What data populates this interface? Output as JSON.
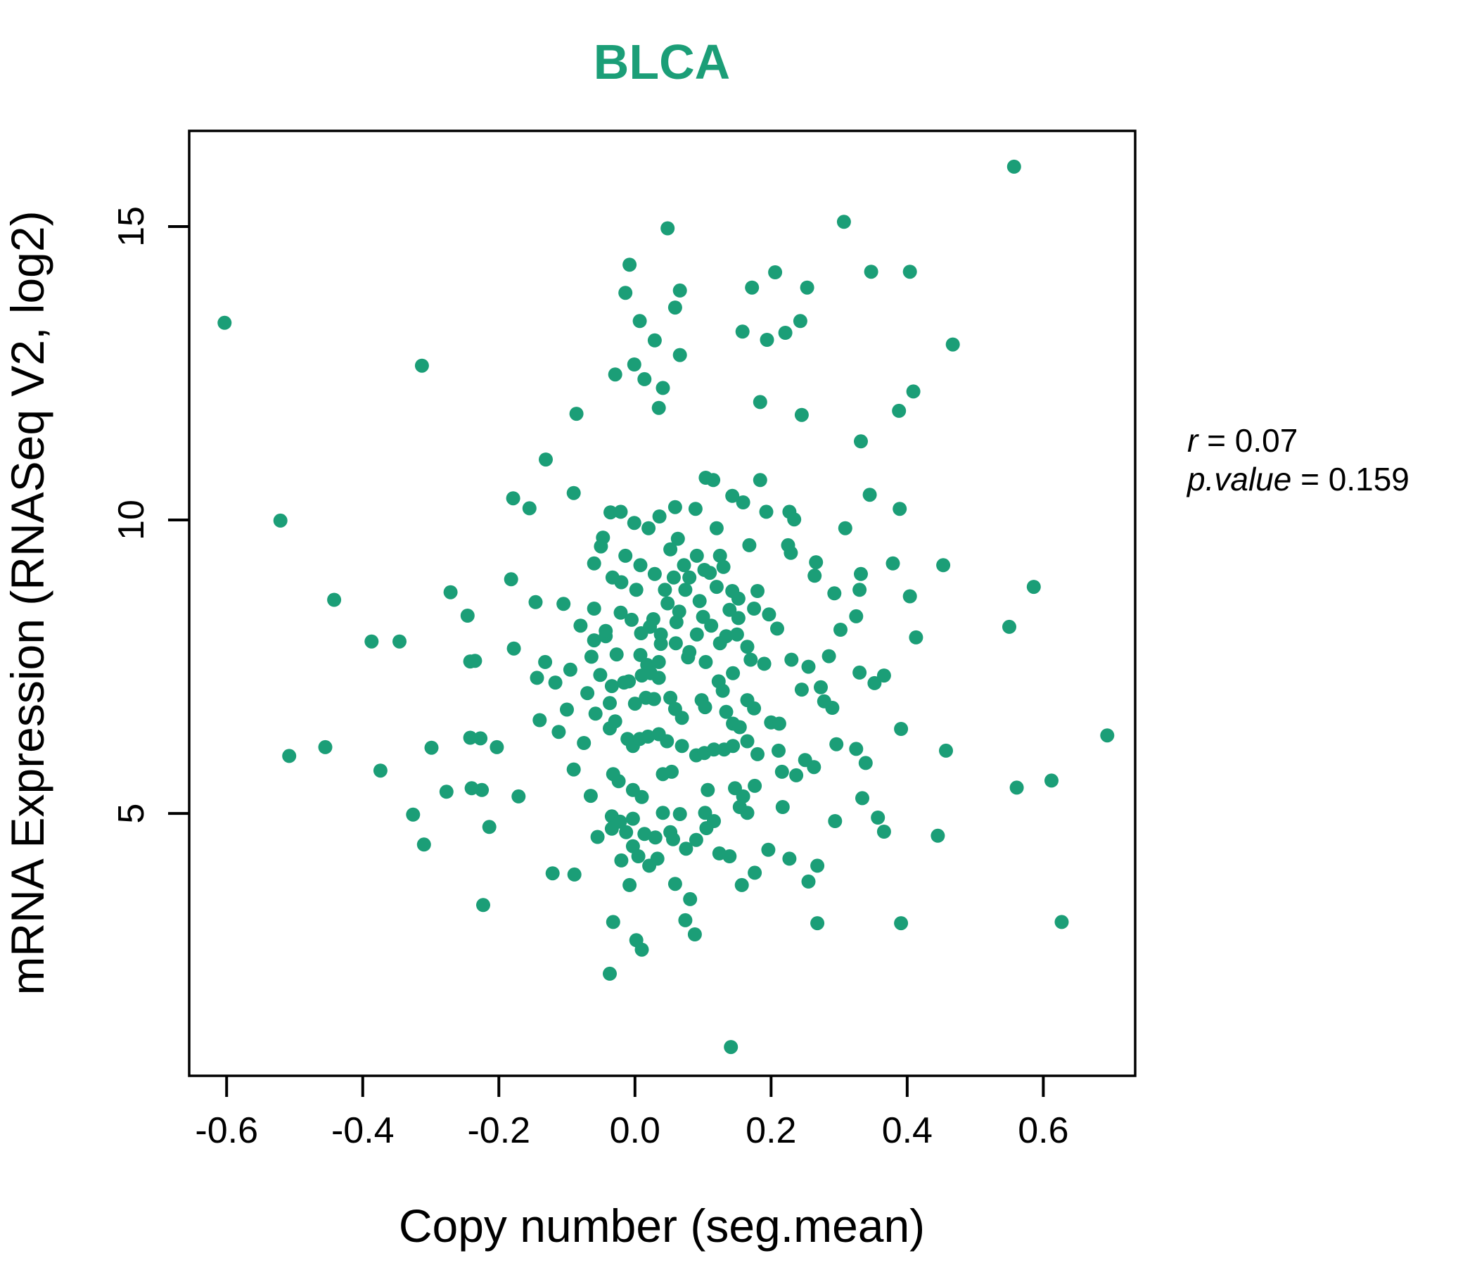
{
  "chart_data": {
    "type": "scatter",
    "title": "BLCA",
    "xlabel": "Copy number (seg.mean)",
    "ylabel": "mRNA Expression (RNASeq V2, log2)",
    "xlim": [
      -0.655,
      0.735
    ],
    "ylim": [
      0.53,
      16.63
    ],
    "grid": false,
    "legend": "none",
    "x_ticks": {
      "values": [
        -0.6,
        -0.4,
        -0.2,
        0.0,
        0.2,
        0.4,
        0.6
      ],
      "labels": [
        "-0.6",
        "-0.4",
        "-0.2",
        "0.0",
        "0.2",
        "0.4",
        "0.6"
      ]
    },
    "y_ticks": {
      "values": [
        5,
        10,
        15
      ],
      "labels": [
        "5",
        "10",
        "15"
      ]
    },
    "annotation": {
      "line1_var": "r",
      "line1_rest": " = 0.07",
      "line2_var": "p.value",
      "line2_rest": " = 0.159"
    },
    "colors": {
      "point": "#1B9E77",
      "title": "#1B9E77",
      "axis": "#000000",
      "background": "#FFFFFF"
    },
    "points": [
      [
        -0.603,
        13.36
      ],
      [
        -0.313,
        12.63
      ],
      [
        -0.521,
        9.99
      ],
      [
        -0.442,
        8.64
      ],
      [
        -0.271,
        8.77
      ],
      [
        -0.182,
        8.99
      ],
      [
        -0.146,
        8.6
      ],
      [
        -0.105,
        8.57
      ],
      [
        -0.131,
        11.03
      ],
      [
        -0.179,
        10.37
      ],
      [
        -0.155,
        10.2
      ],
      [
        -0.09,
        10.46
      ],
      [
        -0.086,
        11.81
      ],
      [
        -0.036,
        10.13
      ],
      [
        -0.047,
        9.7
      ],
      [
        -0.06,
        9.26
      ],
      [
        -0.029,
        12.48
      ],
      [
        -0.014,
        13.87
      ],
      [
        -0.008,
        14.35
      ],
      [
        0.048,
        14.97
      ],
      [
        0.007,
        13.39
      ],
      [
        0.029,
        13.06
      ],
      [
        -0.001,
        12.65
      ],
      [
        0.014,
        12.4
      ],
      [
        0.041,
        12.25
      ],
      [
        0.035,
        11.91
      ],
      [
        -0.021,
        10.14
      ],
      [
        -0.001,
        9.95
      ],
      [
        0.02,
        9.86
      ],
      [
        0.036,
        10.06
      ],
      [
        -0.014,
        9.39
      ],
      [
        0.008,
        9.23
      ],
      [
        0.029,
        9.08
      ],
      [
        -0.02,
        8.94
      ],
      [
        0.002,
        8.81
      ],
      [
        0.044,
        8.81
      ],
      [
        0.557,
        16.02
      ],
      [
        0.307,
        15.08
      ],
      [
        0.347,
        14.23
      ],
      [
        0.404,
        14.23
      ],
      [
        0.206,
        14.22
      ],
      [
        0.172,
        13.96
      ],
      [
        0.253,
        13.96
      ],
      [
        0.066,
        13.91
      ],
      [
        0.059,
        13.62
      ],
      [
        0.243,
        13.39
      ],
      [
        0.158,
        13.21
      ],
      [
        0.194,
        13.07
      ],
      [
        0.221,
        13.19
      ],
      [
        0.066,
        12.81
      ],
      [
        0.467,
        12.99
      ],
      [
        0.409,
        12.19
      ],
      [
        0.184,
        12.01
      ],
      [
        0.388,
        11.86
      ],
      [
        0.245,
        11.79
      ],
      [
        0.332,
        11.34
      ],
      [
        0.184,
        10.68
      ],
      [
        0.104,
        10.72
      ],
      [
        0.115,
        10.68
      ],
      [
        0.143,
        10.41
      ],
      [
        0.159,
        10.3
      ],
      [
        0.059,
        10.22
      ],
      [
        0.089,
        10.19
      ],
      [
        0.193,
        10.14
      ],
      [
        0.227,
        10.14
      ],
      [
        0.234,
        10.01
      ],
      [
        0.345,
        10.43
      ],
      [
        0.389,
        10.19
      ],
      [
        0.309,
        9.86
      ],
      [
        0.12,
        9.86
      ],
      [
        0.091,
        9.39
      ],
      [
        0.125,
        9.39
      ],
      [
        0.168,
        9.57
      ],
      [
        0.225,
        9.57
      ],
      [
        0.229,
        9.44
      ],
      [
        0.266,
        9.28
      ],
      [
        0.264,
        9.05
      ],
      [
        0.332,
        9.08
      ],
      [
        0.379,
        9.26
      ],
      [
        0.453,
        9.23
      ],
      [
        0.586,
        8.86
      ],
      [
        0.293,
        8.75
      ],
      [
        0.33,
        8.81
      ],
      [
        0.404,
        8.7
      ],
      [
        0.072,
        9.23
      ],
      [
        0.102,
        9.15
      ],
      [
        0.12,
        8.86
      ],
      [
        0.143,
        8.79
      ],
      [
        0.152,
        8.66
      ],
      [
        0.18,
        8.79
      ],
      [
        0.074,
        8.81
      ],
      [
        0.057,
        9.02
      ],
      [
        -0.246,
        8.37
      ],
      [
        -0.387,
        7.93
      ],
      [
        -0.346,
        7.93
      ],
      [
        -0.235,
        7.6
      ],
      [
        -0.178,
        7.81
      ],
      [
        -0.132,
        7.58
      ],
      [
        -0.144,
        7.31
      ],
      [
        -0.117,
        7.23
      ],
      [
        -0.064,
        7.67
      ],
      [
        -0.043,
        8.02
      ],
      [
        -0.051,
        7.36
      ],
      [
        -0.009,
        7.25
      ],
      [
        -0.037,
        6.88
      ],
      [
        -0.1,
        6.77
      ],
      [
        -0.14,
        6.59
      ],
      [
        -0.112,
        6.39
      ],
      [
        -0.508,
        5.98
      ],
      [
        -0.455,
        6.13
      ],
      [
        -0.374,
        5.73
      ],
      [
        -0.299,
        6.12
      ],
      [
        -0.277,
        5.37
      ],
      [
        -0.227,
        6.28
      ],
      [
        -0.203,
        6.13
      ],
      [
        -0.225,
        5.4
      ],
      [
        -0.171,
        5.29
      ],
      [
        -0.326,
        4.98
      ],
      [
        -0.214,
        4.77
      ],
      [
        -0.31,
        4.47
      ],
      [
        -0.121,
        3.98
      ],
      [
        -0.089,
        3.96
      ],
      [
        -0.223,
        3.44
      ],
      [
        -0.032,
        3.15
      ],
      [
        0.002,
        2.84
      ],
      [
        0.01,
        2.68
      ],
      [
        -0.037,
        2.27
      ],
      [
        -0.242,
        7.59
      ],
      [
        -0.242,
        6.29
      ],
      [
        -0.24,
        5.43
      ],
      [
        -0.06,
        8.49
      ],
      [
        -0.021,
        8.42
      ],
      [
        0.027,
        8.31
      ],
      [
        -0.043,
        8.11
      ],
      [
        0.009,
        8.07
      ],
      [
        0.038,
        7.89
      ],
      [
        -0.027,
        7.71
      ],
      [
        0.018,
        7.53
      ],
      [
        0.55,
        8.18
      ],
      [
        0.413,
        8.0
      ],
      [
        0.694,
        6.33
      ],
      [
        0.457,
        6.07
      ],
      [
        0.561,
        5.44
      ],
      [
        0.612,
        5.56
      ],
      [
        0.627,
        3.15
      ],
      [
        0.391,
        3.13
      ],
      [
        0.268,
        3.13
      ],
      [
        0.445,
        4.62
      ],
      [
        0.141,
        1.02
      ],
      [
        0.33,
        7.4
      ],
      [
        0.366,
        7.35
      ],
      [
        0.352,
        7.22
      ],
      [
        0.29,
        6.8
      ],
      [
        0.391,
        6.44
      ],
      [
        0.296,
        6.18
      ],
      [
        0.325,
        6.1
      ],
      [
        0.339,
        5.86
      ],
      [
        0.357,
        4.93
      ],
      [
        0.294,
        4.87
      ],
      [
        0.334,
        5.26
      ],
      [
        0.366,
        4.69
      ],
      [
        0.081,
        3.54
      ],
      [
        0.074,
        3.18
      ],
      [
        0.088,
        2.94
      ],
      [
        0.061,
        8.26
      ],
      [
        0.091,
        8.05
      ],
      [
        0.112,
        8.2
      ],
      [
        0.139,
        8.47
      ],
      [
        0.152,
        8.33
      ],
      [
        0.175,
        8.49
      ],
      [
        0.197,
        8.39
      ],
      [
        0.209,
        8.15
      ],
      [
        0.325,
        8.36
      ],
      [
        0.302,
        8.13
      ],
      [
        0.078,
        7.66
      ],
      [
        0.104,
        7.58
      ],
      [
        0.134,
        8.02
      ],
      [
        0.165,
        7.84
      ],
      [
        -0.034,
        7.17
      ],
      [
        -0.016,
        7.23
      ],
      [
        0.01,
        7.35
      ],
      [
        0.023,
        7.39
      ],
      [
        0.035,
        7.31
      ],
      [
        0.123,
        7.25
      ],
      [
        0.129,
        7.09
      ],
      [
        0.144,
        7.39
      ],
      [
        0.165,
        6.93
      ],
      [
        0.175,
        6.79
      ],
      [
        0.245,
        7.11
      ],
      [
        0.273,
        7.15
      ],
      [
        0.278,
        6.91
      ],
      [
        -0.037,
        6.45
      ],
      [
        -0.029,
        6.57
      ],
      [
        0.0,
        6.87
      ],
      [
        0.016,
        6.97
      ],
      [
        0.028,
        6.95
      ],
      [
        0.052,
        6.97
      ],
      [
        0.059,
        6.78
      ],
      [
        0.069,
        6.63
      ],
      [
        0.098,
        6.93
      ],
      [
        0.103,
        6.81
      ],
      [
        0.134,
        6.73
      ],
      [
        0.144,
        6.53
      ],
      [
        0.154,
        6.47
      ],
      [
        0.2,
        6.55
      ],
      [
        0.212,
        6.53
      ],
      [
        -0.011,
        6.27
      ],
      [
        -0.003,
        6.15
      ],
      [
        0.007,
        6.27
      ],
      [
        0.019,
        6.31
      ],
      [
        0.035,
        6.35
      ],
      [
        0.047,
        6.23
      ],
      [
        0.069,
        6.15
      ],
      [
        0.09,
        5.99
      ],
      [
        0.102,
        6.03
      ],
      [
        0.116,
        6.09
      ],
      [
        0.131,
        6.09
      ],
      [
        0.144,
        6.15
      ],
      [
        0.165,
        6.23
      ],
      [
        0.18,
        6.01
      ],
      [
        0.211,
        6.07
      ],
      [
        0.25,
        5.91
      ],
      [
        0.263,
        5.79
      ],
      [
        -0.032,
        5.67
      ],
      [
        -0.024,
        5.55
      ],
      [
        -0.003,
        5.4
      ],
      [
        0.01,
        5.28
      ],
      [
        0.041,
        5.67
      ],
      [
        0.054,
        5.71
      ],
      [
        0.107,
        5.4
      ],
      [
        0.147,
        5.43
      ],
      [
        0.159,
        5.29
      ],
      [
        0.176,
        5.47
      ],
      [
        0.216,
        5.71
      ],
      [
        0.237,
        5.65
      ],
      [
        -0.034,
        4.95
      ],
      [
        -0.022,
        4.86
      ],
      [
        -0.003,
        4.91
      ],
      [
        0.041,
        5.01
      ],
      [
        0.066,
        4.99
      ],
      [
        0.103,
        5.01
      ],
      [
        0.116,
        4.87
      ],
      [
        0.154,
        5.11
      ],
      [
        0.165,
        5.01
      ],
      [
        0.217,
        5.11
      ],
      [
        -0.034,
        4.74
      ],
      [
        -0.013,
        4.68
      ],
      [
        0.014,
        4.65
      ],
      [
        0.03,
        4.59
      ],
      [
        0.052,
        4.68
      ],
      [
        -0.003,
        4.44
      ],
      [
        0.005,
        4.27
      ],
      [
        0.021,
        4.11
      ],
      [
        0.033,
        4.23
      ],
      [
        0.056,
        4.56
      ],
      [
        0.124,
        4.32
      ],
      [
        0.139,
        4.27
      ],
      [
        0.196,
        4.38
      ],
      [
        0.227,
        4.23
      ],
      [
        0.176,
        3.99
      ],
      [
        0.255,
        3.84
      ],
      [
        0.268,
        4.11
      ],
      [
        -0.008,
        3.78
      ],
      [
        0.059,
        3.8
      ],
      [
        0.157,
        3.78
      ],
      [
        -0.05,
        9.55
      ],
      [
        -0.033,
        9.02
      ],
      [
        0.052,
        9.5
      ],
      [
        0.063,
        9.68
      ],
      [
        0.08,
        9.02
      ],
      [
        0.048,
        8.58
      ],
      [
        0.065,
        8.44
      ],
      [
        0.095,
        8.62
      ],
      [
        0.11,
        9.1
      ],
      [
        0.13,
        9.2
      ],
      [
        0.06,
        7.9
      ],
      [
        0.08,
        7.75
      ],
      [
        0.1,
        8.35
      ],
      [
        0.125,
        7.9
      ],
      [
        0.15,
        8.05
      ],
      [
        0.022,
        8.18
      ],
      [
        -0.005,
        8.3
      ],
      [
        0.038,
        8.05
      ],
      [
        0.17,
        7.62
      ],
      [
        0.19,
        7.55
      ],
      [
        0.23,
        7.62
      ],
      [
        0.255,
        7.5
      ],
      [
        0.285,
        7.68
      ],
      [
        0.035,
        7.58
      ],
      [
        0.008,
        7.7
      ],
      [
        -0.06,
        7.95
      ],
      [
        -0.08,
        8.2
      ],
      [
        -0.095,
        7.45
      ],
      [
        -0.07,
        7.05
      ],
      [
        -0.058,
        6.7
      ],
      [
        -0.075,
        6.2
      ],
      [
        -0.09,
        5.75
      ],
      [
        -0.065,
        5.3
      ],
      [
        -0.055,
        4.6
      ],
      [
        -0.02,
        4.2
      ],
      [
        0.09,
        4.55
      ],
      [
        0.105,
        4.75
      ],
      [
        0.075,
        4.4
      ]
    ]
  }
}
